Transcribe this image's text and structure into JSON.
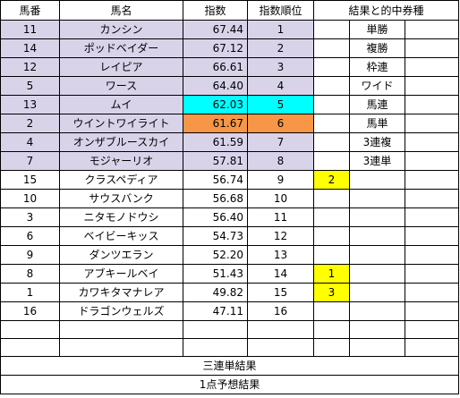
{
  "headers": {
    "no": "馬番",
    "name": "馬名",
    "index": "指数",
    "rank": "指数順位",
    "result": "結果と的中券種"
  },
  "rows": [
    {
      "no": "11",
      "name": "カンシン",
      "index": "67.44",
      "rank": "1",
      "mark": "",
      "bet": "単勝"
    },
    {
      "no": "14",
      "name": "ポッドベイダー",
      "index": "67.12",
      "rank": "2",
      "mark": "",
      "bet": "複勝"
    },
    {
      "no": "12",
      "name": "レイピア",
      "index": "66.61",
      "rank": "3",
      "mark": "",
      "bet": "枠連"
    },
    {
      "no": "5",
      "name": "ワース",
      "index": "64.40",
      "rank": "4",
      "mark": "",
      "bet": "ワイド"
    },
    {
      "no": "13",
      "name": "ムイ",
      "index": "62.03",
      "rank": "5",
      "mark": "",
      "bet": "馬連"
    },
    {
      "no": "2",
      "name": "ウイントワイライト",
      "index": "61.67",
      "rank": "6",
      "mark": "",
      "bet": "馬単"
    },
    {
      "no": "4",
      "name": "オンザブルースカイ",
      "index": "61.59",
      "rank": "7",
      "mark": "",
      "bet": "3連複"
    },
    {
      "no": "7",
      "name": "モジャーリオ",
      "index": "57.81",
      "rank": "8",
      "mark": "",
      "bet": "3連単"
    },
    {
      "no": "15",
      "name": "クラスペディア",
      "index": "56.74",
      "rank": "9",
      "mark": "2",
      "bet": ""
    },
    {
      "no": "10",
      "name": "サウスバンク",
      "index": "56.68",
      "rank": "10",
      "mark": "",
      "bet": ""
    },
    {
      "no": "3",
      "name": "ニタモノドウシ",
      "index": "56.40",
      "rank": "11",
      "mark": "",
      "bet": ""
    },
    {
      "no": "6",
      "name": "ベイビーキッス",
      "index": "54.73",
      "rank": "12",
      "mark": "",
      "bet": ""
    },
    {
      "no": "9",
      "name": "ダンツエラン",
      "index": "52.20",
      "rank": "13",
      "mark": "",
      "bet": ""
    },
    {
      "no": "8",
      "name": "アブキールベイ",
      "index": "51.43",
      "rank": "14",
      "mark": "1",
      "bet": ""
    },
    {
      "no": "1",
      "name": "カワキタマナレア",
      "index": "49.82",
      "rank": "15",
      "mark": "3",
      "bet": ""
    },
    {
      "no": "16",
      "name": "ドラゴンウェルズ",
      "index": "47.11",
      "rank": "16",
      "mark": "",
      "bet": ""
    },
    {
      "no": "",
      "name": "",
      "index": "",
      "rank": "",
      "mark": "",
      "bet": ""
    },
    {
      "no": "",
      "name": "",
      "index": "",
      "rank": "",
      "mark": "",
      "bet": ""
    }
  ],
  "footer": {
    "trifecta_result": "三連単結果",
    "single_prediction_result": "1点予想結果"
  },
  "colors": {
    "lavender": "#d9d3ea",
    "cyan": "#00ffff",
    "orange": "#f79646",
    "yellow": "#ffff00"
  }
}
